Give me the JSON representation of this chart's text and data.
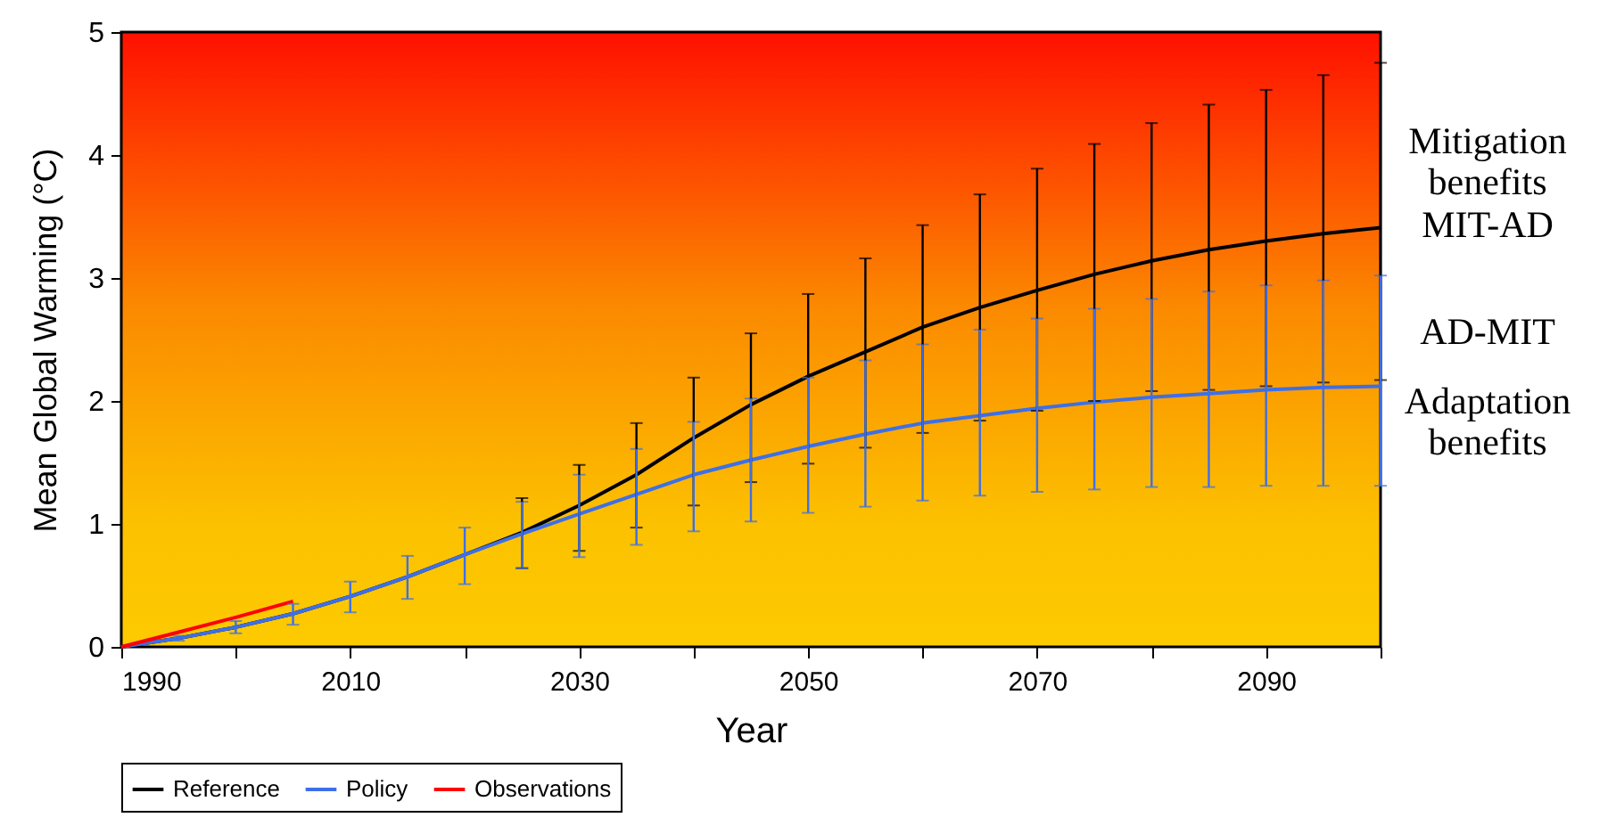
{
  "chart_data": {
    "type": "line",
    "xlabel": "Year",
    "ylabel": "Mean Global Warming (°C)",
    "x": [
      1990,
      1995,
      2000,
      2005,
      2010,
      2015,
      2020,
      2025,
      2030,
      2035,
      2040,
      2045,
      2050,
      2055,
      2060,
      2065,
      2070,
      2075,
      2080,
      2085,
      2090,
      2095,
      2100
    ],
    "series": [
      {
        "name": "Reference",
        "color": "#000000",
        "values": [
          0,
          0.07,
          0.16,
          0.27,
          0.41,
          0.57,
          0.75,
          0.93,
          1.15,
          1.4,
          1.7,
          1.97,
          2.2,
          2.4,
          2.6,
          2.76,
          2.9,
          3.03,
          3.14,
          3.23,
          3.3,
          3.36,
          3.41
        ],
        "errors": [
          null,
          null,
          null,
          null,
          null,
          null,
          null,
          [
            0.64,
            1.21
          ],
          [
            0.78,
            1.48
          ],
          [
            0.97,
            1.82
          ],
          [
            1.15,
            2.19
          ],
          [
            1.34,
            2.55
          ],
          [
            1.49,
            2.87
          ],
          [
            1.62,
            3.16
          ],
          [
            1.74,
            3.43
          ],
          [
            1.84,
            3.68
          ],
          [
            1.92,
            3.89
          ],
          [
            2.0,
            4.09
          ],
          [
            2.08,
            4.26
          ],
          [
            2.09,
            4.41
          ],
          [
            2.12,
            4.53
          ],
          [
            2.15,
            4.65
          ],
          [
            2.17,
            4.75
          ]
        ]
      },
      {
        "name": "Policy",
        "color": "#3d6fe8",
        "values": [
          0,
          0.07,
          0.16,
          0.27,
          0.41,
          0.57,
          0.75,
          0.92,
          1.08,
          1.24,
          1.4,
          1.52,
          1.63,
          1.73,
          1.82,
          1.88,
          1.94,
          1.99,
          2.03,
          2.06,
          2.09,
          2.11,
          2.12
        ],
        "errors": [
          null,
          [
            0.05,
            0.09
          ],
          [
            0.11,
            0.21
          ],
          [
            0.18,
            0.35
          ],
          [
            0.28,
            0.53
          ],
          [
            0.39,
            0.74
          ],
          [
            0.51,
            0.97
          ],
          [
            0.64,
            1.18
          ],
          [
            0.73,
            1.4
          ],
          [
            0.83,
            1.61
          ],
          [
            0.94,
            1.83
          ],
          [
            1.02,
            2.02
          ],
          [
            1.09,
            2.19
          ],
          [
            1.14,
            2.33
          ],
          [
            1.19,
            2.46
          ],
          [
            1.23,
            2.58
          ],
          [
            1.26,
            2.67
          ],
          [
            1.28,
            2.75
          ],
          [
            1.3,
            2.83
          ],
          [
            1.3,
            2.89
          ],
          [
            1.31,
            2.94
          ],
          [
            1.31,
            2.98
          ],
          [
            1.31,
            3.02
          ]
        ]
      },
      {
        "name": "Observations",
        "color": "#ff0000",
        "x": [
          1990,
          1995,
          2000,
          2005
        ],
        "values": [
          0,
          0.12,
          0.24,
          0.37
        ]
      }
    ],
    "xlim": [
      1990,
      2100
    ],
    "xticks": [
      1990,
      {
        "value": 2000,
        "label": null
      },
      2010,
      {
        "value": 2020,
        "label": null
      },
      2030,
      {
        "value": 2040,
        "label": null
      },
      2050,
      {
        "value": 2060,
        "label": null
      },
      2070,
      {
        "value": 2080,
        "label": null
      },
      2090,
      {
        "value": 2100,
        "label": null
      }
    ],
    "ylim": [
      0,
      5
    ],
    "yticks": [
      0,
      1,
      2,
      3,
      4,
      5
    ],
    "grid": false,
    "legend": "bottom",
    "annotations": [
      "Mitigation benefits",
      "MIT-AD",
      "AD-MIT",
      "Adaptation benefits"
    ]
  }
}
